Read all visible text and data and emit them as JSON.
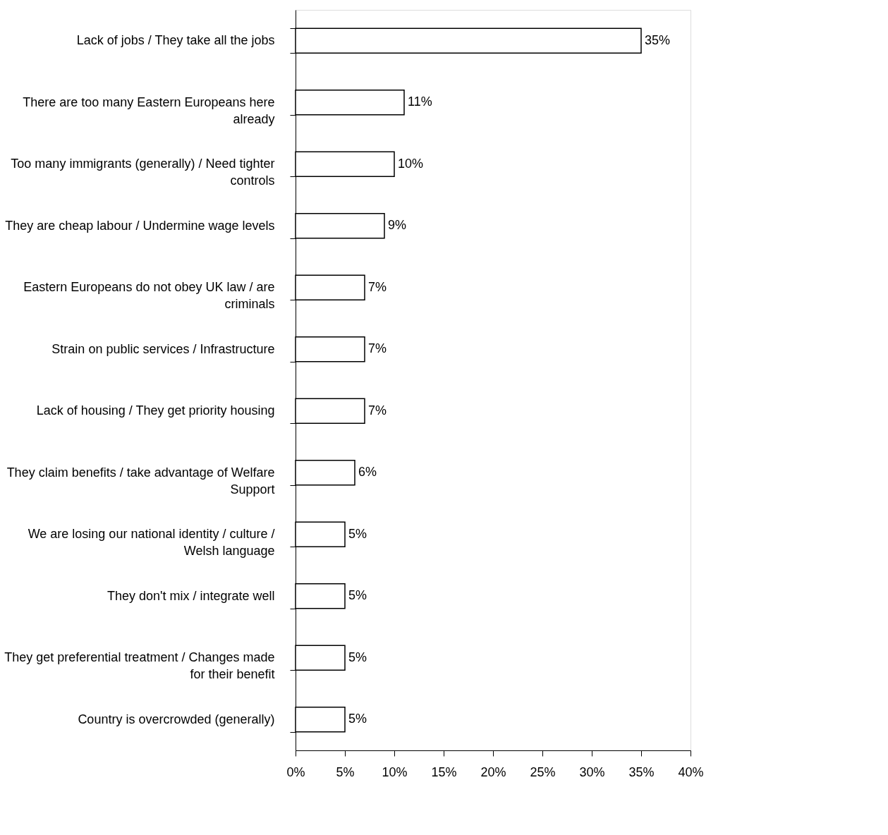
{
  "chart_data": {
    "type": "bar",
    "orientation": "horizontal",
    "categories": [
      "Lack of jobs / They take all the jobs",
      "There are too many Eastern Europeans here already",
      "Too many immigrants (generally) / Need tighter controls",
      "They are cheap labour / Undermine wage levels",
      "Eastern Europeans do not obey UK law / are criminals",
      "Strain on public services / Infrastructure",
      "Lack of housing / They get priority housing",
      "They claim benefits / take advantage of Welfare Support",
      "We are losing our national identity / culture / Welsh language",
      "They don't mix / integrate well",
      "They get preferential treatment / Changes made for their benefit",
      "Country is overcrowded (generally)"
    ],
    "values": [
      35,
      11,
      10,
      9,
      7,
      7,
      7,
      6,
      5,
      5,
      5,
      5
    ],
    "value_labels": [
      "35%",
      "11%",
      "10%",
      "9%",
      "7%",
      "7%",
      "7%",
      "6%",
      "5%",
      "5%",
      "5%",
      "5%"
    ],
    "color": "#ffffff",
    "xlim": [
      0,
      40
    ],
    "xticks": [
      {
        "value": 0,
        "label": "0%"
      },
      {
        "value": 5,
        "label": "5%"
      },
      {
        "value": 10,
        "label": "10%"
      },
      {
        "value": 15,
        "label": "15%"
      },
      {
        "value": 20,
        "label": "20%"
      },
      {
        "value": 25,
        "label": "25%"
      },
      {
        "value": 30,
        "label": "30%"
      },
      {
        "value": 35,
        "label": "35%"
      },
      {
        "value": 40,
        "label": "40%"
      }
    ],
    "grid": false
  }
}
